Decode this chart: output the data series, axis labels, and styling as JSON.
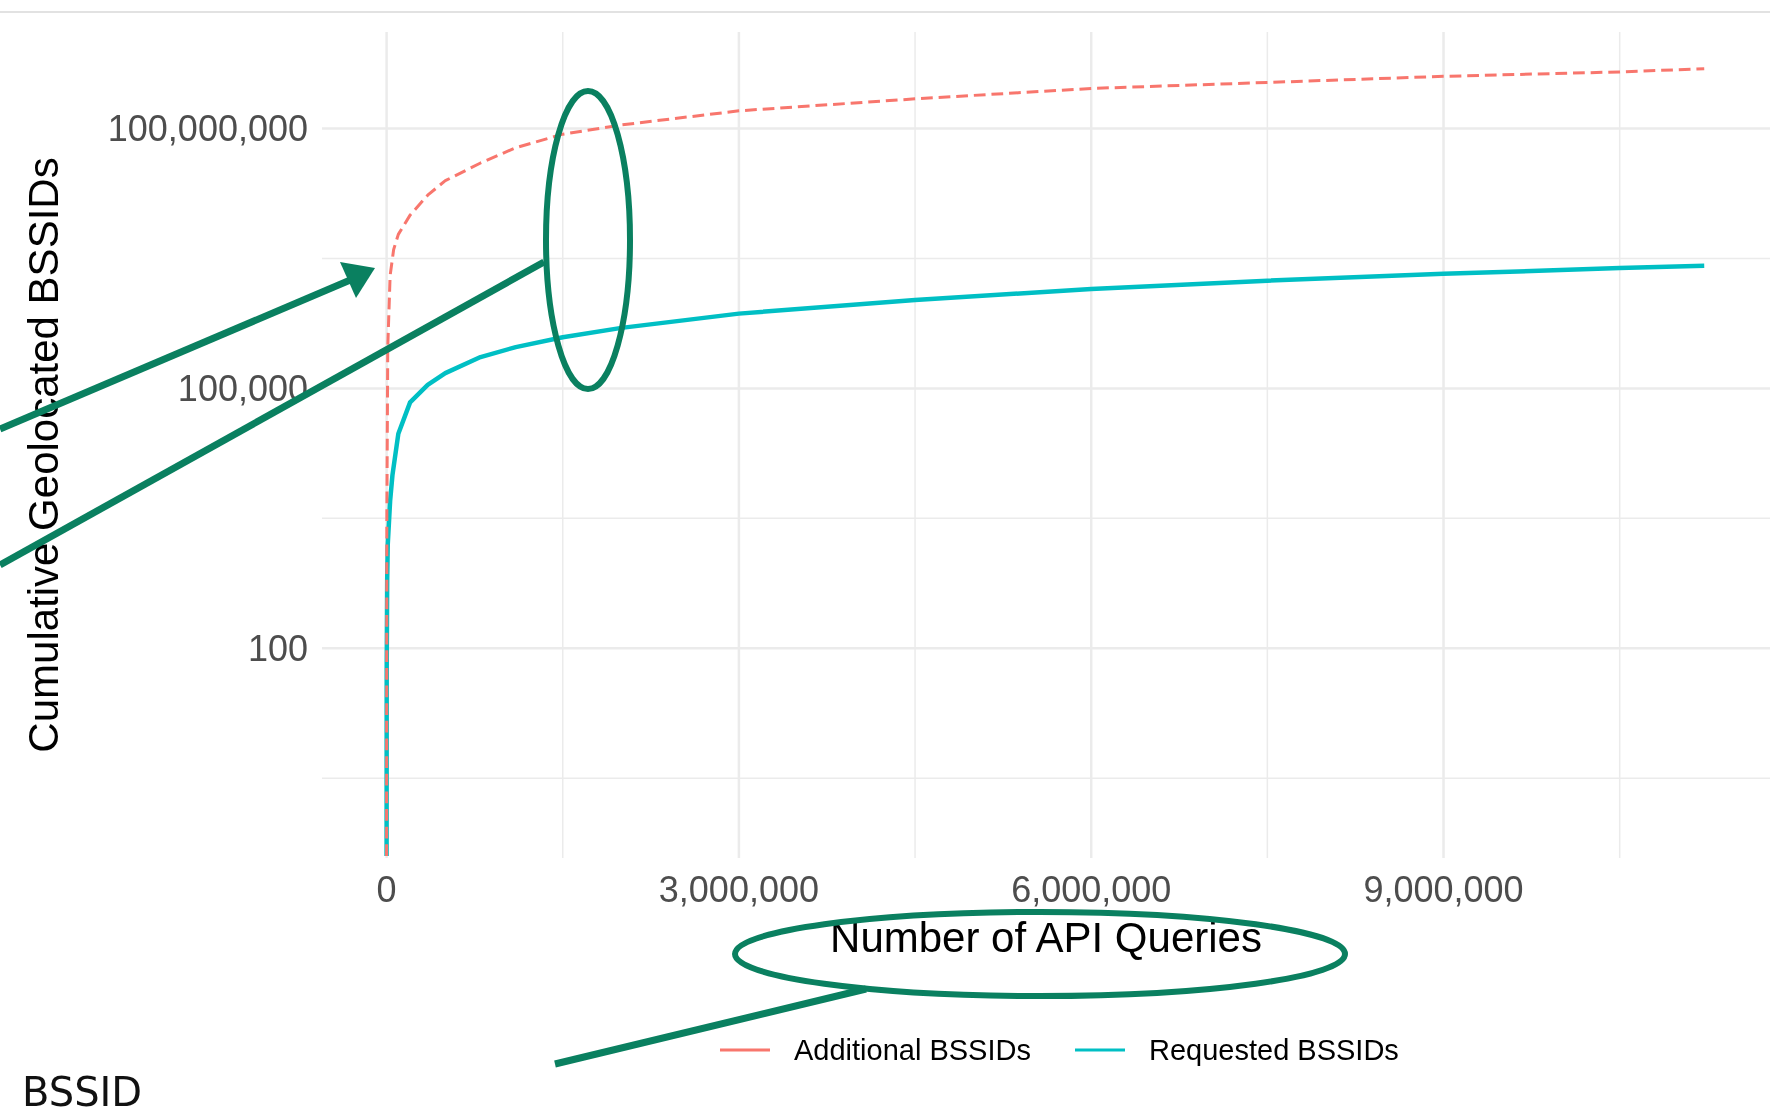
{
  "chart_data": {
    "type": "line",
    "xlabel": "Number of API Queries",
    "ylabel": "Cumulative Geolocated BSSIDs",
    "log": "y",
    "grid": true,
    "legend": "bottom",
    "xlim": [
      -550000,
      11780000
    ],
    "xticks": [
      {
        "value": 0,
        "label": "0"
      },
      {
        "value": 1500000,
        "label": null
      },
      {
        "value": 3000000,
        "label": "3,000,000"
      },
      {
        "value": 4500000,
        "label": null
      },
      {
        "value": 6000000,
        "label": "6,000,000"
      },
      {
        "value": 7500000,
        "label": null
      },
      {
        "value": 9000000,
        "label": "9,000,000"
      },
      {
        "value": 10500000,
        "label": null
      }
    ],
    "ylim": [
      0.38,
      1300000000
    ],
    "yticks": [
      {
        "value": 3.16,
        "label": null
      },
      {
        "value": 100,
        "label": "100"
      },
      {
        "value": 3162,
        "label": null
      },
      {
        "value": 100000,
        "label": "100,000"
      },
      {
        "value": 3162000,
        "label": null
      },
      {
        "value": 100000000,
        "label": "100,000,000"
      }
    ],
    "series": [
      {
        "name": "Additional BSSIDs",
        "color": "#f8766d",
        "line_style": "dashed",
        "x": [
          0,
          2000,
          10000,
          30000,
          60000,
          100000,
          200000,
          350000,
          500000,
          800000,
          1100000,
          1500000,
          2000000,
          3000000,
          4500000,
          6000000,
          7500000,
          9000000,
          10500000,
          11220000
        ],
        "values": [
          0.4,
          3000,
          300000,
          2000000,
          4000000,
          6000000,
          10000000,
          17000000,
          25000000,
          40000000,
          60000000,
          86000000,
          110000000,
          160000000,
          220000000,
          290000000,
          340000000,
          400000000,
          450000000,
          490000000
        ]
      },
      {
        "name": "Requested BSSIDs",
        "color": "#00bfc4",
        "line_style": "solid",
        "x": [
          0,
          1000,
          5000,
          10000,
          30000,
          50000,
          100000,
          200000,
          350000,
          500000,
          800000,
          1100000,
          1500000,
          2000000,
          3000000,
          4500000,
          6000000,
          7500000,
          9000000,
          10500000,
          11220000
        ],
        "values": [
          0.4,
          60,
          600,
          1600,
          5000,
          10000,
          30000,
          69000,
          110000,
          150000,
          230000,
          300000,
          390000,
          500000,
          730000,
          1050000,
          1400000,
          1750000,
          2100000,
          2450000,
          2600000
        ]
      }
    ],
    "annotations": [
      "BSSID"
    ]
  }
}
